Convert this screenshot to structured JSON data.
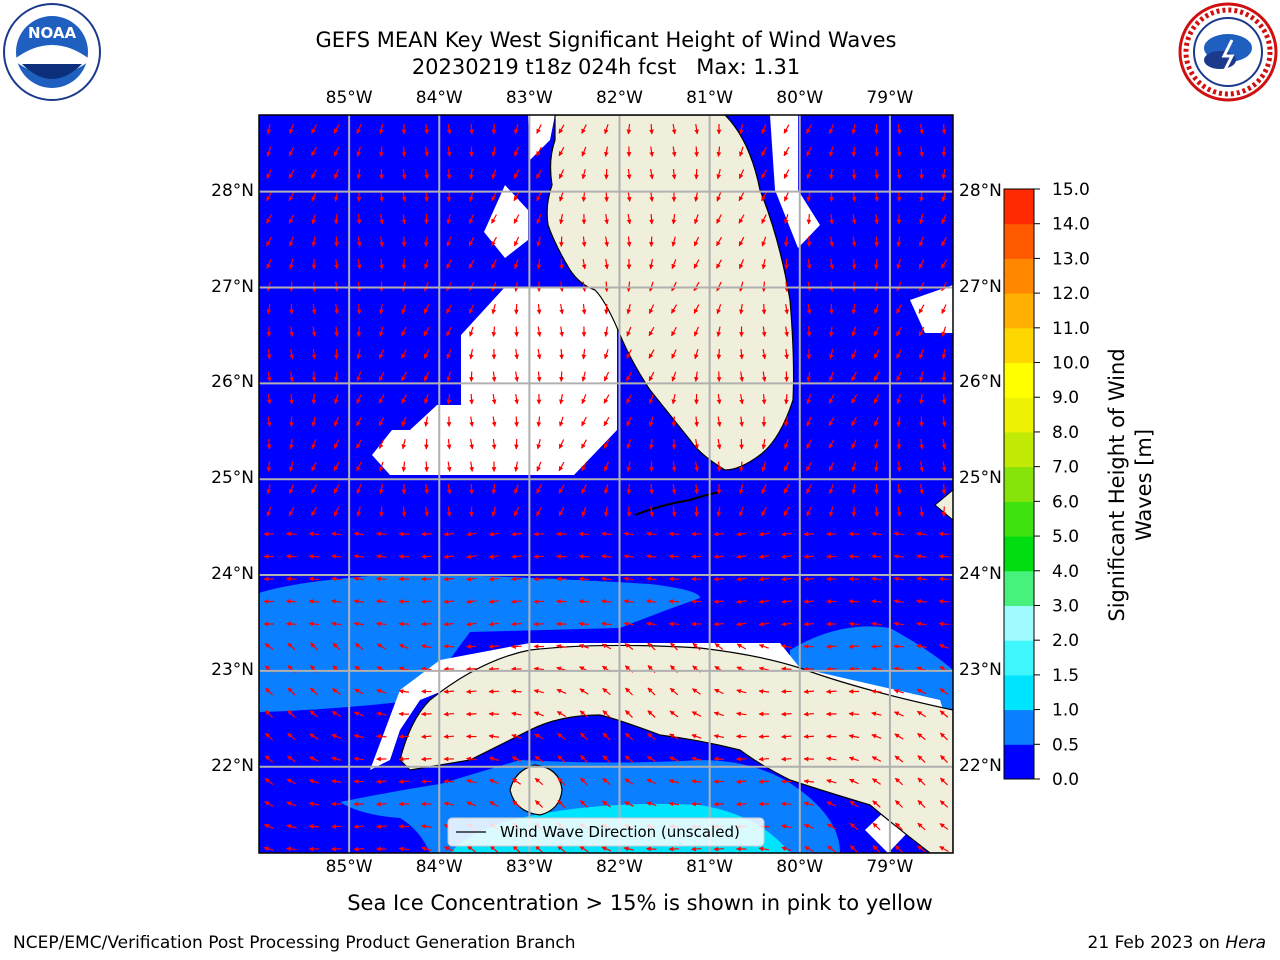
{
  "title": {
    "line1": "GEFS MEAN Key West Significant Height of Wind Waves",
    "line2": "20230219 t18z 024h fcst",
    "max_label": "Max: 1.31"
  },
  "map": {
    "lon_labels": [
      "85°W",
      "84°W",
      "83°W",
      "82°W",
      "81°W",
      "80°W",
      "79°W"
    ],
    "lat_labels": [
      "28°N",
      "27°N",
      "26°N",
      "25°N",
      "24°N",
      "23°N",
      "22°N"
    ],
    "lon_values": [
      -85,
      -84,
      -83,
      -82,
      -81,
      -80,
      -79
    ],
    "lat_values": [
      28,
      27,
      26,
      25,
      24,
      23,
      22
    ],
    "extent": {
      "lon_min": -86,
      "lon_max": -78.3,
      "lat_min": 21.1,
      "lat_max": 28.8
    },
    "ocean_color": "#0000ff",
    "land_color": "#efefdc",
    "arrow_color": "#ff0000"
  },
  "legend": {
    "label": "Wind Wave Direction (unscaled)"
  },
  "colorbar": {
    "title_line1": "Significant Height of Wind",
    "title_line2": "Waves [m]",
    "levels": [
      "0.0",
      "0.5",
      "1.0",
      "1.5",
      "2.0",
      "3.0",
      "4.0",
      "5.0",
      "6.0",
      "7.0",
      "8.0",
      "9.0",
      "10.0",
      "11.0",
      "12.0",
      "13.0",
      "14.0",
      "15.0"
    ],
    "colors": [
      "#0000ff",
      "#0a7fff",
      "#00e5ff",
      "#3ff6ff",
      "#9ffbff",
      "#48f07c",
      "#00dd11",
      "#3fe20e",
      "#86e40a",
      "#c1ea07",
      "#eef305",
      "#ffff00",
      "#ffd700",
      "#ffb000",
      "#ff8800",
      "#ff5a00",
      "#ff2a00",
      "#ff0000"
    ]
  },
  "caption": "Sea Ice Concentration > 15% is shown in pink to yellow",
  "footer": {
    "left": "NCEP/EMC/Verification Post Processing Product Generation Branch",
    "date": "21 Feb 2023 on",
    "machine": "Hera"
  },
  "logos": {
    "noaa_text": "NOAA"
  }
}
